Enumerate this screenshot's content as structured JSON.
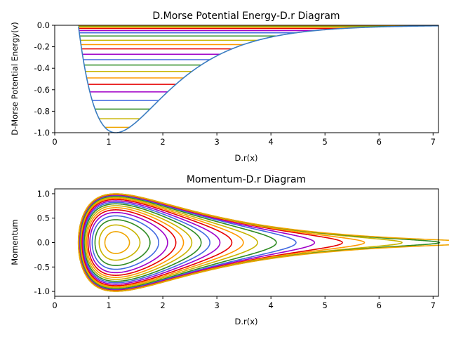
{
  "chart_data": [
    {
      "type": "line",
      "title": "D.Morse Potential Energy-D.r Diagram",
      "xlabel": "D.r(x)",
      "ylabel": "D-Morse Potential Energy(v)",
      "xlim": [
        0,
        7.1
      ],
      "ylim": [
        -1.0,
        0.0
      ],
      "xticks": [
        "0",
        "1",
        "2",
        "3",
        "4",
        "5",
        "6",
        "7"
      ],
      "yticks": [
        "-1.0",
        "-0.8",
        "-0.6",
        "-0.4",
        "-0.2",
        "0.0"
      ],
      "grid": false,
      "potential": {
        "form": "V(r) = (1 - exp(-a(r - r0)))^2 - 1",
        "r0": 1.13,
        "a": 1.0,
        "x_range": [
          0.44,
          7.1
        ],
        "color": "#3a7cc1"
      },
      "energy_levels": [
        -0.95,
        -0.87,
        -0.78,
        -0.7,
        -0.62,
        -0.55,
        -0.49,
        -0.43,
        -0.37,
        -0.32,
        -0.27,
        -0.22,
        -0.18,
        -0.14,
        -0.1,
        -0.07,
        -0.05,
        -0.03,
        -0.02,
        -0.01,
        -0.005,
        -0.002
      ],
      "level_colors": [
        "#f0a500",
        "#c8b400",
        "#2e8b22",
        "#4169e1",
        "#a000c8",
        "#e60000",
        "#ff9900",
        "#c8b400",
        "#2e8b22",
        "#4169e1",
        "#a000c8",
        "#e60000",
        "#ff9900",
        "#c8b400",
        "#2e8b22",
        "#4169e1",
        "#a000c8",
        "#e60000",
        "#ff9900",
        "#c8b400",
        "#2e8b22",
        "#f0a500"
      ]
    },
    {
      "type": "line",
      "title": "Momentum-D.r Diagram",
      "xlabel": "D.r(x)",
      "ylabel": "Momentum",
      "xlim": [
        0,
        7.1
      ],
      "ylim": [
        -1.1,
        1.1
      ],
      "xticks": [
        "0",
        "1",
        "2",
        "3",
        "4",
        "5",
        "6",
        "7"
      ],
      "yticks": [
        "-1.0",
        "-0.5",
        "0.0",
        "0.5",
        "1.0"
      ],
      "grid": false,
      "phase_orbits": {
        "form": "p = ±sqrt(2(E - V(r)))·0.707",
        "energy_levels": [
          -0.95,
          -0.87,
          -0.78,
          -0.7,
          -0.62,
          -0.55,
          -0.49,
          -0.43,
          -0.37,
          -0.32,
          -0.27,
          -0.22,
          -0.18,
          -0.14,
          -0.1,
          -0.07,
          -0.05,
          -0.03,
          -0.02,
          -0.01,
          -0.005,
          -0.002
        ],
        "colors": [
          "#f0a500",
          "#c8b400",
          "#2e8b22",
          "#4169e1",
          "#a000c8",
          "#e60000",
          "#ff9900",
          "#c8b400",
          "#2e8b22",
          "#4169e1",
          "#a000c8",
          "#e60000",
          "#ff9900",
          "#c8b400",
          "#2e8b22",
          "#4169e1",
          "#a000c8",
          "#e60000",
          "#ff9900",
          "#c8b400",
          "#2e8b22",
          "#f0a500"
        ]
      }
    }
  ]
}
